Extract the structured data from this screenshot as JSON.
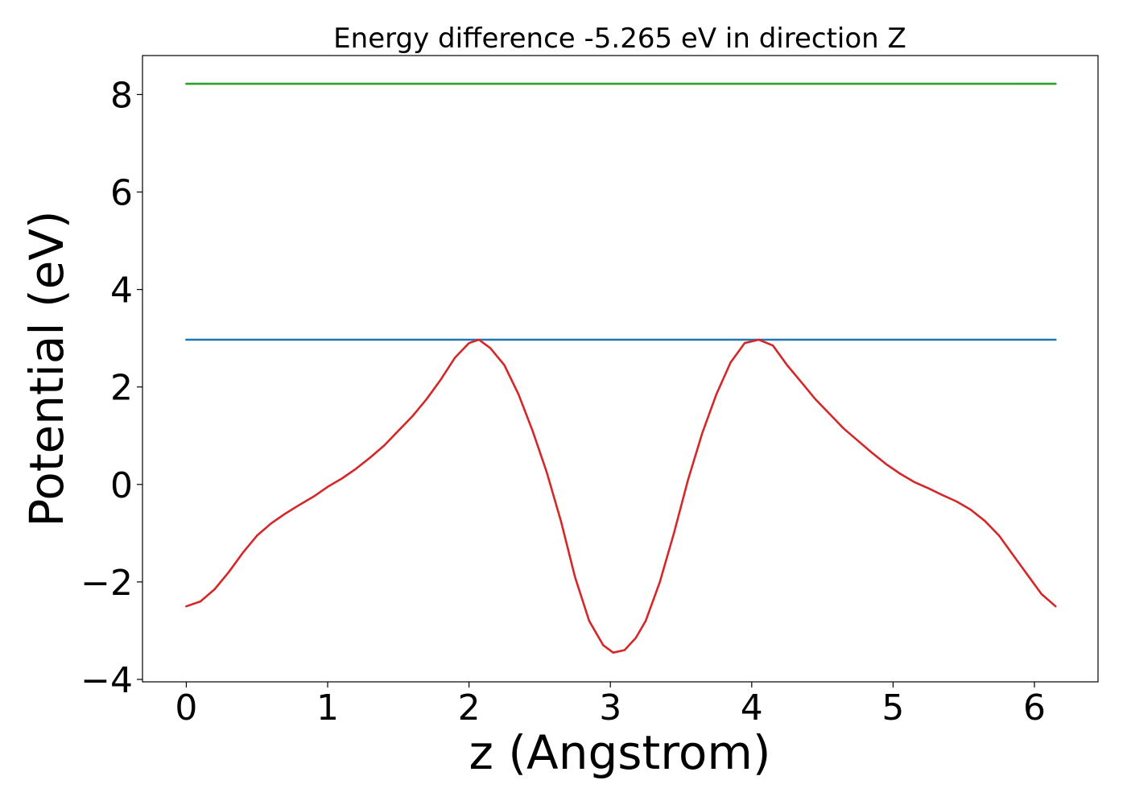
{
  "chart_data": {
    "type": "line",
    "title": "Energy difference -5.265 eV in direction Z",
    "xlabel": "z (Angstrom)",
    "ylabel": "Potential (eV)",
    "xlim": [
      -0.31,
      6.45
    ],
    "ylim": [
      -4.05,
      8.8
    ],
    "xticks": [
      0,
      1,
      2,
      3,
      4,
      5,
      6
    ],
    "yticks": [
      -4,
      -2,
      0,
      2,
      4,
      6,
      8
    ],
    "xtick_labels": [
      "0",
      "1",
      "2",
      "3",
      "4",
      "5",
      "6"
    ],
    "ytick_labels": [
      "−4",
      "−2",
      "0",
      "2",
      "4",
      "6",
      "8"
    ],
    "grid": false,
    "series": [
      {
        "color": "#2ca02c",
        "x": [
          0,
          6.15
        ],
        "y": [
          8.22,
          8.22
        ]
      },
      {
        "color": "#1f77b4",
        "x": [
          0,
          6.15
        ],
        "y": [
          2.97,
          2.97
        ]
      },
      {
        "color": "#d62728",
        "x": [
          0,
          0.1,
          0.2,
          0.3,
          0.4,
          0.5,
          0.6,
          0.7,
          0.8,
          0.9,
          1.0,
          1.1,
          1.2,
          1.3,
          1.4,
          1.5,
          1.6,
          1.7,
          1.8,
          1.9,
          2.0,
          2.07,
          2.15,
          2.25,
          2.35,
          2.45,
          2.55,
          2.65,
          2.75,
          2.85,
          2.95,
          3.02,
          3.1,
          3.18,
          3.25,
          3.35,
          3.45,
          3.55,
          3.65,
          3.75,
          3.85,
          3.95,
          4.05,
          4.15,
          4.25,
          4.35,
          4.45,
          4.55,
          4.65,
          4.75,
          4.85,
          4.95,
          5.05,
          5.15,
          5.25,
          5.35,
          5.45,
          5.55,
          5.65,
          5.75,
          5.85,
          5.95,
          6.05,
          6.15
        ],
        "y": [
          -2.5,
          -2.4,
          -2.15,
          -1.8,
          -1.4,
          -1.05,
          -0.8,
          -0.6,
          -0.42,
          -0.25,
          -0.05,
          0.12,
          0.32,
          0.55,
          0.8,
          1.1,
          1.4,
          1.75,
          2.15,
          2.6,
          2.9,
          2.97,
          2.8,
          2.45,
          1.85,
          1.1,
          0.25,
          -0.75,
          -1.9,
          -2.8,
          -3.3,
          -3.45,
          -3.4,
          -3.15,
          -2.8,
          -2.0,
          -1.0,
          0.1,
          1.05,
          1.85,
          2.5,
          2.9,
          2.97,
          2.85,
          2.45,
          2.1,
          1.75,
          1.45,
          1.15,
          0.9,
          0.65,
          0.42,
          0.22,
          0.05,
          -0.08,
          -0.22,
          -0.35,
          -0.52,
          -0.75,
          -1.05,
          -1.45,
          -1.85,
          -2.25,
          -2.5
        ]
      }
    ]
  }
}
